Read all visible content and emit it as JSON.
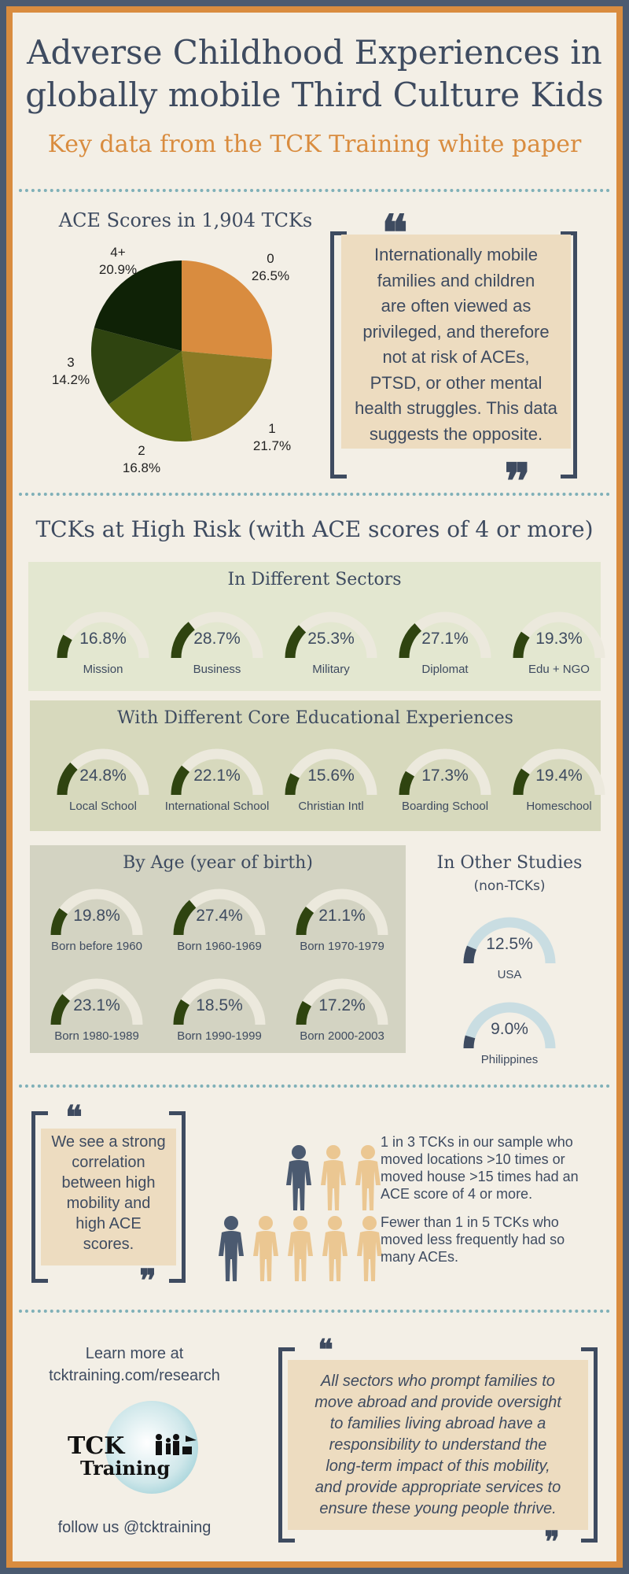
{
  "header": {
    "title_line1": "Adverse Childhood Experiences in",
    "title_line2": "globally mobile Third Culture Kids",
    "subtitle": "Key data from the TCK Training white paper"
  },
  "pie": {
    "title": "ACE Scores in 1,904 TCKs",
    "labels": [
      {
        "name": "0",
        "pct": "26.5%"
      },
      {
        "name": "1",
        "pct": "21.7%"
      },
      {
        "name": "2",
        "pct": "16.8%"
      },
      {
        "name": "3",
        "pct": "14.2%"
      },
      {
        "name": "4+",
        "pct": "20.9%"
      }
    ]
  },
  "chart_data": {
    "type": "pie",
    "title": "ACE Scores in 1,904 TCKs",
    "categories": [
      "0",
      "1",
      "2",
      "3",
      "4+"
    ],
    "values": [
      26.5,
      21.7,
      16.8,
      14.2,
      20.9
    ],
    "colors": [
      "#d98c3f",
      "#8a7a24",
      "#5f6b12",
      "#2f4410",
      "#0f2206"
    ]
  },
  "quote1": {
    "open": "❝",
    "close": "❞",
    "lines": [
      "Internationally mobile",
      "families and children",
      "are often viewed as",
      "privileged, and therefore",
      "not at risk of ACEs,",
      "PTSD, or other mental",
      "health struggles. This data",
      "suggests the opposite."
    ]
  },
  "high_risk": {
    "title": "TCKs at High Risk (with ACE scores of 4 or more)",
    "sectors": {
      "title": "In Different Sectors",
      "items": [
        {
          "label": "Mission",
          "value": "16.8%",
          "frac": 0.168
        },
        {
          "label": "Business",
          "value": "28.7%",
          "frac": 0.287
        },
        {
          "label": "Military",
          "value": "25.3%",
          "frac": 0.253
        },
        {
          "label": "Diplomat",
          "value": "27.1%",
          "frac": 0.271
        },
        {
          "label": "Edu + NGO",
          "value": "19.3%",
          "frac": 0.193
        }
      ]
    },
    "education": {
      "title": "With Different Core Educational Experiences",
      "items": [
        {
          "label": "Local School",
          "value": "24.8%",
          "frac": 0.248
        },
        {
          "label": "International School",
          "value": "22.1%",
          "frac": 0.221
        },
        {
          "label": "Christian Intl",
          "value": "15.6%",
          "frac": 0.156
        },
        {
          "label": "Boarding School",
          "value": "17.3%",
          "frac": 0.173
        },
        {
          "label": "Homeschool",
          "value": "19.4%",
          "frac": 0.194
        }
      ]
    },
    "age": {
      "title": "By Age (year of birth)",
      "items": [
        {
          "label": "Born before 1960",
          "value": "19.8%",
          "frac": 0.198
        },
        {
          "label": "Born 1960-1969",
          "value": "27.4%",
          "frac": 0.274
        },
        {
          "label": "Born 1970-1979",
          "value": "21.1%",
          "frac": 0.211
        },
        {
          "label": "Born 1980-1989",
          "value": "23.1%",
          "frac": 0.231
        },
        {
          "label": "Born 1990-1999",
          "value": "18.5%",
          "frac": 0.185
        },
        {
          "label": "Born 2000-2003",
          "value": "17.2%",
          "frac": 0.172
        }
      ]
    },
    "other": {
      "title": "In Other Studies",
      "subtitle": "(non-TCKs)",
      "items": [
        {
          "label": "USA",
          "value": "12.5%",
          "frac": 0.125
        },
        {
          "label": "Philippines",
          "value": "9.0%",
          "frac": 0.09
        }
      ]
    }
  },
  "mobility": {
    "quote_open": "❝",
    "quote_close": "❞",
    "quote_lines": [
      "We see a strong",
      "correlation",
      "between high",
      "mobility and",
      "high ACE",
      "scores."
    ],
    "stat1": [
      "1 in 3 TCKs in our sample who",
      "moved locations >10 times or",
      "moved house >15 times had an",
      "ACE score of 4 or more."
    ],
    "stat2": [
      "Fewer than 1 in 5 TCKs who",
      "moved less frequently had so",
      "many ACEs."
    ]
  },
  "footer": {
    "learn_more": "Learn more at",
    "url": "tcktraining.com/research",
    "logo_text_1": "TCK",
    "logo_text_2": "Training",
    "follow": "follow us @tcktraining",
    "quote_open": "❝",
    "quote_close": "❞",
    "quote_lines": [
      "All sectors who prompt families to",
      "move abroad and provide oversight",
      "to families living abroad have a",
      "responsibility to understand the",
      "long-term impact of this mobility,",
      "and provide appropriate services to",
      "ensure these young people thrive."
    ]
  },
  "colors": {
    "gauge_fill": "#2f4410",
    "gauge_track": "#ece9dd",
    "gauge_other_fill": "#3e4b60",
    "gauge_other_track": "#c9dde2",
    "accent": "#d98c3f",
    "navy": "#3e4b60"
  }
}
